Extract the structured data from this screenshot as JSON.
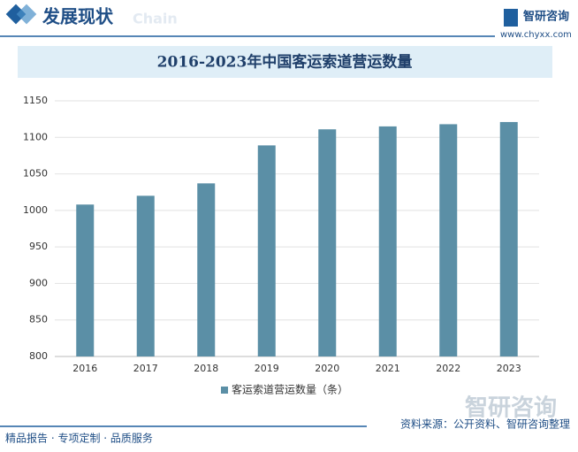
{
  "header": {
    "title": "发展现状",
    "tag": "Chain",
    "brand": "智研咨询",
    "url": "www.chyxx.com"
  },
  "chart_data": {
    "type": "bar",
    "title": "2016-2023年中国客运索道营运数量",
    "categories": [
      "2016",
      "2017",
      "2018",
      "2019",
      "2020",
      "2021",
      "2022",
      "2023"
    ],
    "series": [
      {
        "name": "客运索道营运数量（条）",
        "color": "#5b8fa6",
        "values": [
          1008,
          1020,
          1037,
          1089,
          1111,
          1115,
          1118,
          1121
        ]
      }
    ],
    "ylim": [
      800,
      1150
    ],
    "yticks": [
      800,
      850,
      900,
      950,
      1000,
      1050,
      1100,
      1150
    ],
    "grid": true,
    "legend": "bottom"
  },
  "footer": {
    "slogan": "精品报告 · 专项定制 · 品质服务",
    "source": "资料来源：公开资料、智研咨询整理",
    "watermark": "智研咨询"
  }
}
